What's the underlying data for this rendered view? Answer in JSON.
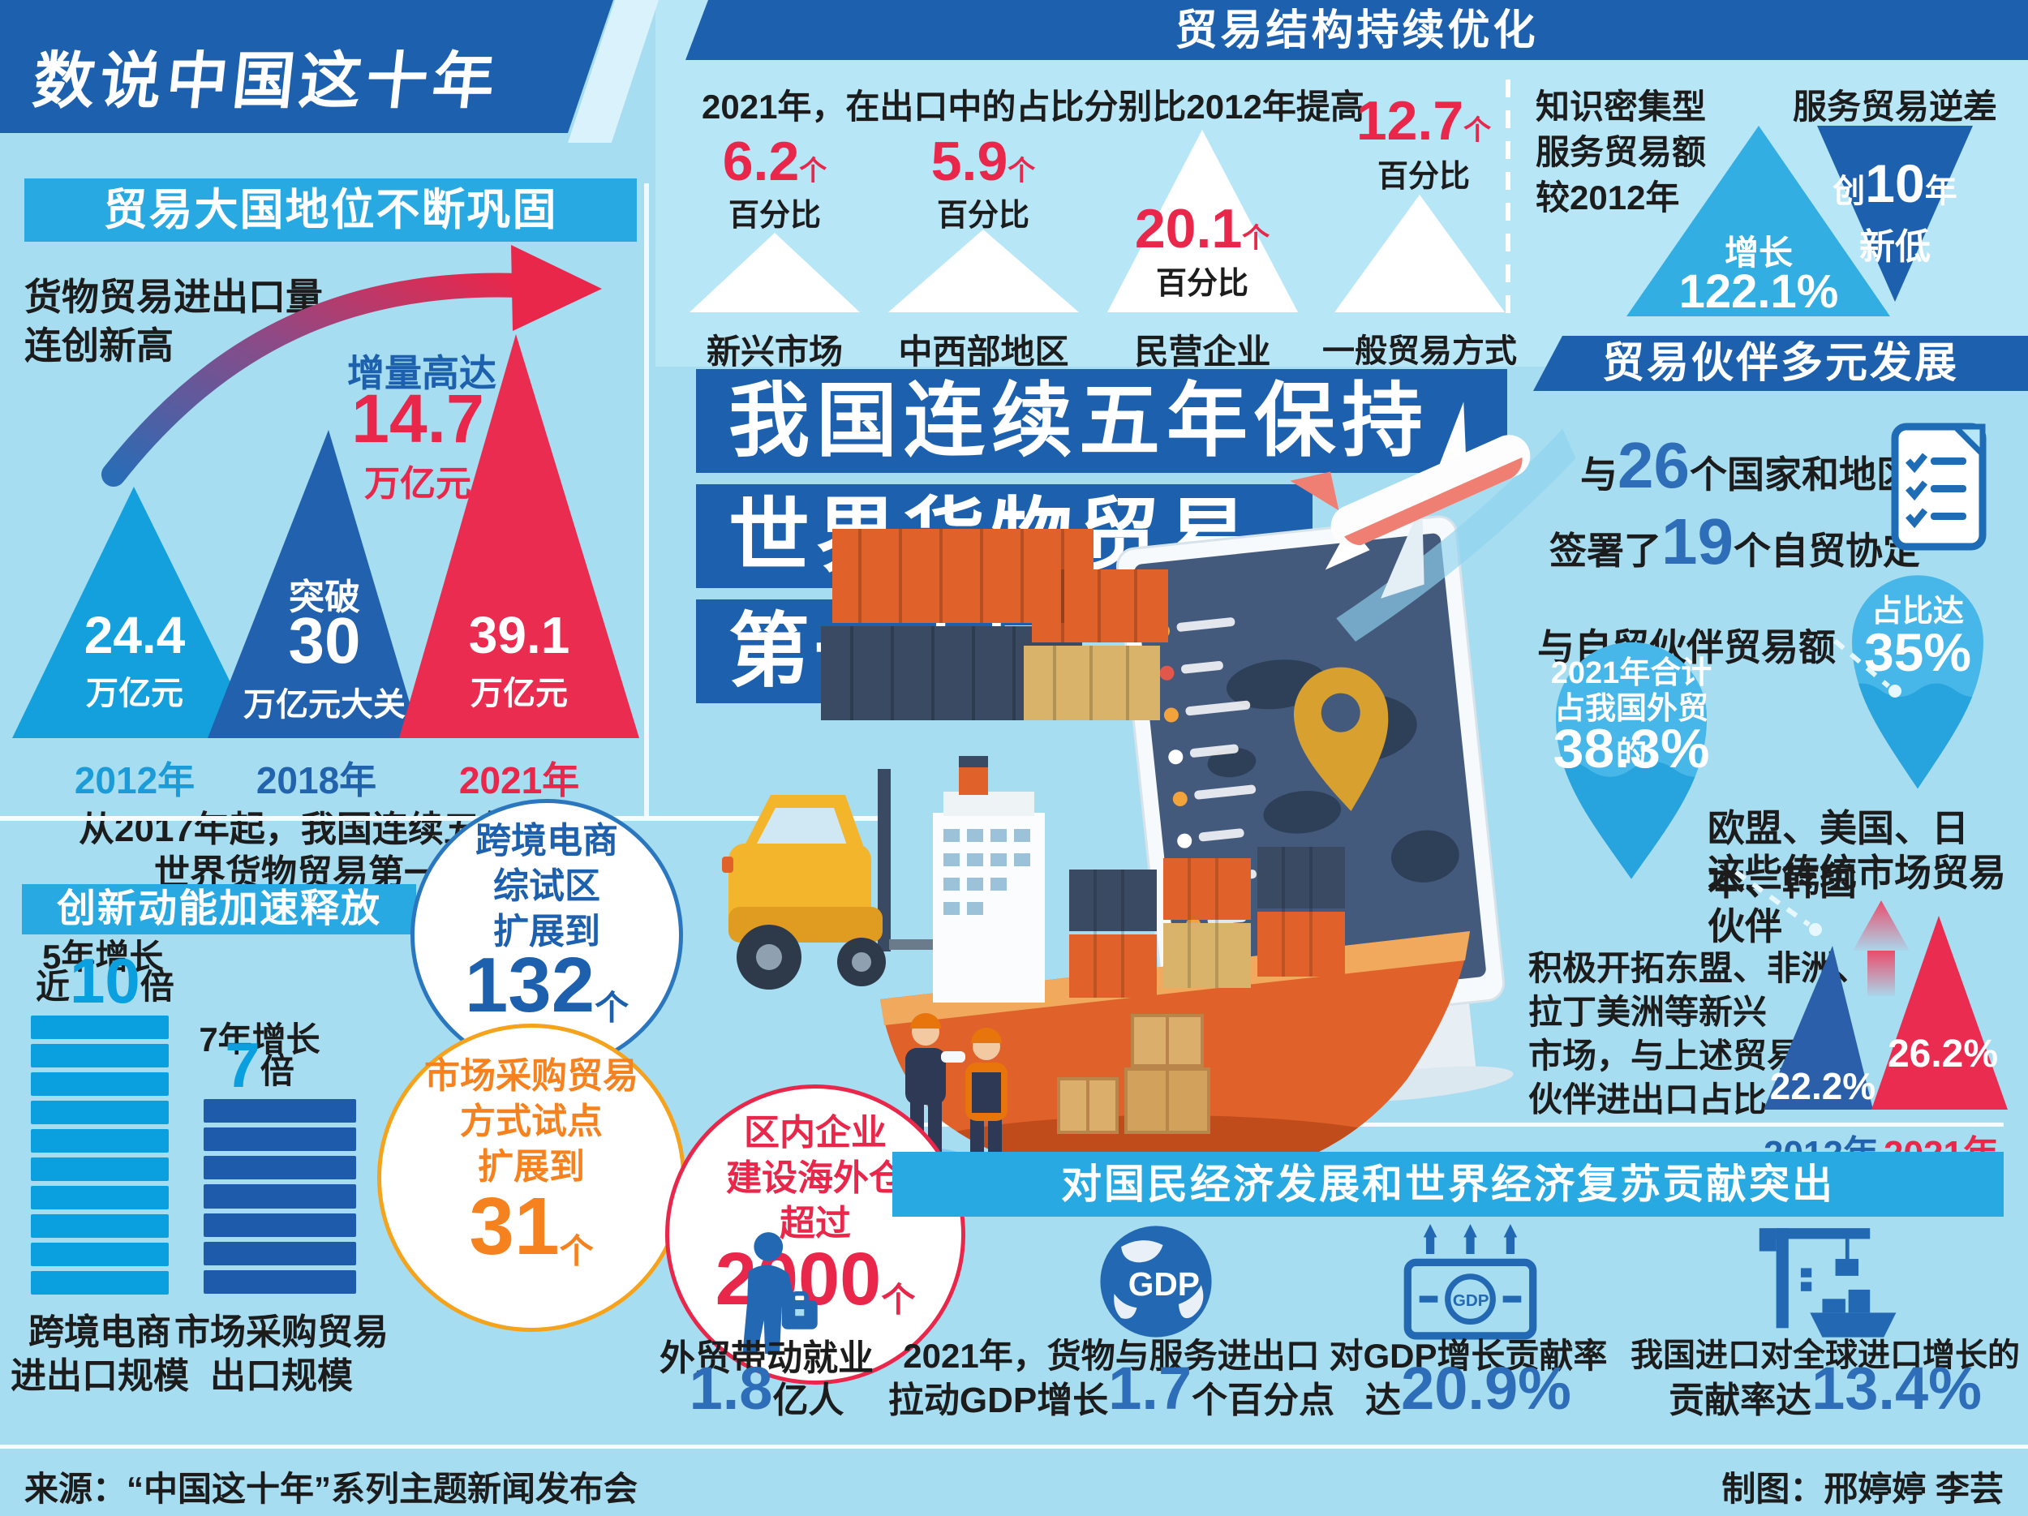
{
  "meta": {
    "badge": "数说中国这十年",
    "source": "来源：“中国这十年”系列主题新闻发布会",
    "credit": "制图：邢婷婷 李芸"
  },
  "colors": {
    "dark_blue": "#1d61ae",
    "bright_blue": "#29a9e1",
    "red": "#e8274b",
    "orange": "#f5821f",
    "bar_light": "#0aa0e0",
    "bar_dark": "#1e5cab",
    "num_blue": "#2e6db8",
    "droplet": "#47b6e8"
  },
  "trade_power": {
    "header": "贸易大国地位不断巩固",
    "intro1": "货物贸易进出口量",
    "intro2": "连创新高",
    "gain_label": "增量高达",
    "gain_value": "14.7",
    "gain_unit": "万亿元",
    "t2012": {
      "value": "24.4",
      "unit": "万亿元",
      "year": "2012年"
    },
    "t2018": {
      "prefix": "突破",
      "value": "30",
      "unit": "万亿元大关",
      "year": "2018年"
    },
    "t2021": {
      "value": "39.1",
      "unit": "万亿元",
      "year": "2021年"
    },
    "note1": "从2017年起，我国连续五年保持",
    "note2": "世界货物贸易第一大国"
  },
  "structure": {
    "header": "贸易结构持续优化",
    "intro": "2021年，在出口中的占比分别比2012年提高",
    "items": [
      {
        "value": "6.2",
        "suffix": "个",
        "unit": "百分比",
        "label": "新兴市场"
      },
      {
        "value": "5.9",
        "suffix": "个",
        "unit": "百分比",
        "label": "中西部地区"
      },
      {
        "value": "20.1",
        "suffix": "个",
        "unit": "百分比",
        "label": "民营企业"
      },
      {
        "value": "12.7",
        "suffix": "个",
        "unit": "百分比",
        "label": "一般贸易方式"
      }
    ],
    "knowledge1": "知识密集型",
    "knowledge2": "服务贸易额",
    "knowledge3": "较2012年",
    "growth_label": "增长",
    "growth_value": "122.1%",
    "deficit_title": "服务贸易逆差",
    "deficit_pre": "创",
    "deficit_num": "10",
    "deficit_mid": "年",
    "deficit_line2": "新低"
  },
  "headline": {
    "line1": "我国连续五年保持",
    "line2": "世界货物贸易",
    "line3": "第一大国"
  },
  "partners": {
    "header": "贸易伙伴多元发展",
    "fta_l1_pre": "与",
    "fta_l1_num": "26",
    "fta_l1_post": "个国家和地区",
    "fta_l2_pre": "签署了",
    "fta_l2_num": "19",
    "fta_l2_post": "个自贸协定",
    "volume_label": "与自贸伙伴贸易额",
    "drop_small_label": "占比达",
    "drop_small_value": "35%",
    "drop_large_l1": "2021年合计",
    "drop_large_l2": "占我国外贸的",
    "drop_large_value": "38.3%",
    "traditional1": "欧盟、美国、日本、韩国",
    "traditional2": "这些传统市场贸易伙伴",
    "emerging1": "积极开拓东盟、非洲、",
    "emerging2": "拉丁美洲等新兴",
    "emerging3": "市场，与上述贸易",
    "emerging4": "伙伴进出口占比",
    "bar2012_value": "22.2%",
    "bar2012_year": "2012年",
    "bar2021_value": "26.2%",
    "bar2021_year": "2021年"
  },
  "innovation": {
    "header": "创新动能加速释放",
    "left": {
      "l1": "5年增长",
      "pre": "近",
      "num": "10",
      "suf": "倍",
      "bar_count": 10,
      "label1": "跨境电商",
      "label2": "进出口规模"
    },
    "right": {
      "l1": "7年增长",
      "num": "7",
      "suf": "倍",
      "bar_count": 7,
      "label1": "市场采购贸易",
      "label2": "出口规模"
    },
    "bubble_ec": {
      "l1": "跨境电商",
      "l2": "综试区",
      "l3": "扩展到",
      "num": "132",
      "suf": "个"
    },
    "bubble_wh": {
      "l1": "区内企业",
      "l2": "建设海外仓",
      "l3": "超过",
      "num": "2000",
      "suf": "个"
    },
    "bubble_mp": {
      "l1": "市场采购贸易",
      "l2": "方式试点",
      "l3": "扩展到",
      "num": "31",
      "suf": "个"
    }
  },
  "contribution": {
    "header": "对国民经济发展和世界经济复苏贡献突出",
    "g1": {
      "l1": "外贸带动就业",
      "num": "1.8",
      "suf": "亿人"
    },
    "g2": {
      "l1": "2021年，货物与服务进出口",
      "pre": "拉动GDP增长",
      "num": "1.7",
      "suf": "个百分点"
    },
    "g3": {
      "l1": "对GDP增长贡献率",
      "pre": "达",
      "num": "20.9%"
    },
    "g4": {
      "l1": "我国进口对全球进口增长的",
      "pre": "贡献率达",
      "num": "13.4%"
    }
  },
  "icons": {
    "gdp_text": "GDP"
  },
  "chart_data": [
    {
      "type": "bar",
      "title": "货物贸易进出口量连创新高",
      "categories": [
        "2012年",
        "2018年",
        "2021年"
      ],
      "values": [
        24.4,
        30,
        39.1
      ],
      "unit": "万亿元",
      "annotation": "增量高达14.7万亿元；从2017年起，我国连续五年保持世界货物贸易第一大国"
    },
    {
      "type": "bar",
      "title": "2021年，在出口中的占比分别比2012年提高",
      "categories": [
        "新兴市场",
        "中西部地区",
        "民营企业",
        "一般贸易方式"
      ],
      "values": [
        6.2,
        5.9,
        20.1,
        12.7
      ],
      "unit": "个百分比"
    },
    {
      "type": "bar",
      "title": "知识密集型服务贸易额较2012年增长；服务贸易逆差创10年新低",
      "categories": [
        "增长"
      ],
      "values": [
        122.1
      ],
      "unit": "%"
    },
    {
      "type": "bar",
      "title": "与26个国家和地区签署了19个自贸协定；与自贸伙伴贸易额占比达35%，2021年合计占我国外贸的38.3%；与上述贸易伙伴进出口占比",
      "categories": [
        "2012年",
        "2021年"
      ],
      "values": [
        22.2,
        26.2
      ],
      "unit": "%"
    },
    {
      "type": "bar",
      "title": "创新动能加速释放（跨境电商综试区扩展到132个、海外仓超过2000个、市场采购贸易试点扩展到31个）",
      "categories": [
        "跨境电商进出口规模（5年增长）",
        "市场采购贸易出口规模（7年增长）"
      ],
      "values": [
        10,
        7
      ],
      "unit": "倍"
    },
    {
      "type": "bar",
      "title": "对国民经济发展和世界经济复苏贡献突出",
      "categories": [
        "外贸带动就业（亿人）",
        "拉动GDP增长（个百分点）",
        "对GDP增长贡献率（%）",
        "对全球进口增长贡献率（%）"
      ],
      "values": [
        1.8,
        1.7,
        20.9,
        13.4
      ]
    }
  ]
}
